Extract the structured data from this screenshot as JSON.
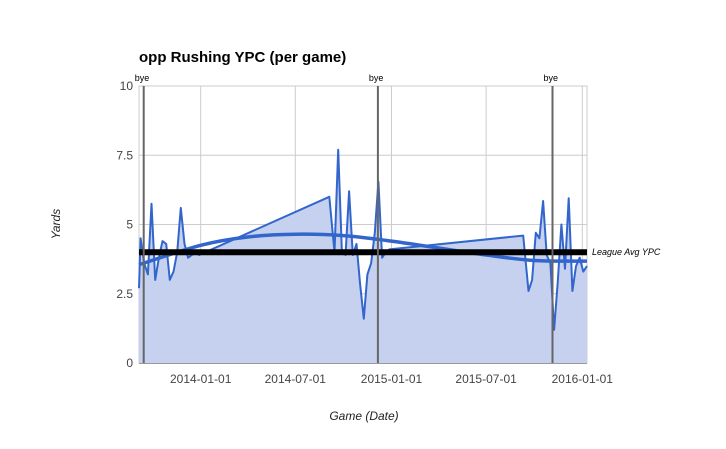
{
  "chart_data": {
    "type": "area",
    "title": "opp Rushing YPC (per game)",
    "xlabel": "Game (Date)",
    "ylabel": "Yards",
    "xlim": [
      "2013-09-05",
      "2016-01-10"
    ],
    "ylim": [
      0,
      10
    ],
    "x_ticks": [
      "2014-01-01",
      "2014-07-01",
      "2015-01-01",
      "2015-07-01",
      "2016-01-01"
    ],
    "y_ticks": [
      "0",
      "2.5",
      "5",
      "7.5",
      "10"
    ],
    "grid": true,
    "colors": {
      "series": "#3366cc",
      "fill": "#c5d1ef",
      "avg_line": "#000000",
      "bye": "#666666"
    },
    "series": [
      {
        "x": [
          "2013-09-05",
          "2013-09-08",
          "2013-09-15",
          "2013-09-22",
          "2013-09-29",
          "2013-10-06",
          "2013-10-13",
          "2013-10-20",
          "2013-10-27",
          "2013-11-03",
          "2013-11-10",
          "2013-11-17",
          "2013-11-24",
          "2013-12-01",
          "2013-12-08",
          "2013-12-15",
          "2013-12-22",
          "2013-12-29",
          "2014-09-04",
          "2014-09-14",
          "2014-09-21",
          "2014-09-28",
          "2014-10-05",
          "2014-10-12",
          "2014-10-19",
          "2014-10-26",
          "2014-11-02",
          "2014-11-09",
          "2014-11-16",
          "2014-11-23",
          "2014-11-30",
          "2014-12-07",
          "2014-12-14",
          "2014-12-21",
          "2014-12-28",
          "2015-09-10",
          "2015-09-20",
          "2015-09-27",
          "2015-10-04",
          "2015-10-11",
          "2015-10-18",
          "2015-10-25",
          "2015-11-01",
          "2015-11-08",
          "2015-11-15",
          "2015-11-22",
          "2015-11-29",
          "2015-12-06",
          "2015-12-13",
          "2015-12-20",
          "2015-12-27",
          "2016-01-03",
          "2016-01-10"
        ],
        "values": [
          2.7,
          4.5,
          3.6,
          3.2,
          5.75,
          3.0,
          3.8,
          4.4,
          4.3,
          3.0,
          3.3,
          4.0,
          5.6,
          4.3,
          3.8,
          3.9,
          4.0,
          3.9,
          6.0,
          4.0,
          7.7,
          4.1,
          3.9,
          6.2,
          3.9,
          4.3,
          2.85,
          1.6,
          3.2,
          3.6,
          4.7,
          6.55,
          3.8,
          4.0,
          4.1,
          4.6,
          2.6,
          3.0,
          4.7,
          4.5,
          5.85,
          3.9,
          3.6,
          1.2,
          2.9,
          5.0,
          3.4,
          5.95,
          2.6,
          3.5,
          3.8,
          3.3,
          3.5
        ]
      }
    ],
    "trendline": {
      "x": [
        "2013-09-05",
        "2014-01-01",
        "2014-04-01",
        "2014-07-01",
        "2014-10-01",
        "2015-01-01",
        "2015-04-01",
        "2015-07-01",
        "2015-10-01",
        "2016-01-10"
      ],
      "values": [
        3.55,
        4.25,
        4.55,
        4.65,
        4.6,
        4.4,
        4.15,
        3.9,
        3.7,
        3.68
      ]
    },
    "reference_line": {
      "label": "League Avg YPC",
      "value": 4.0
    },
    "annotations": [
      {
        "label": "bye",
        "x": "2013-09-14"
      },
      {
        "label": "bye",
        "x": "2014-12-06"
      },
      {
        "label": "bye",
        "x": "2015-11-05"
      }
    ]
  }
}
